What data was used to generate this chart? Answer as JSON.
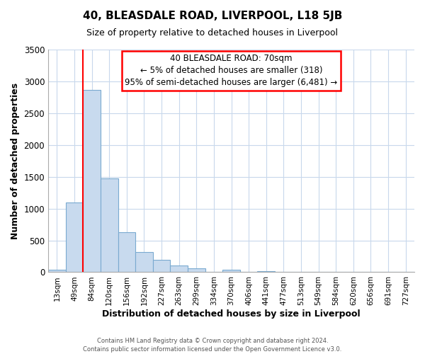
{
  "title": "40, BLEASDALE ROAD, LIVERPOOL, L18 5JB",
  "subtitle": "Size of property relative to detached houses in Liverpool",
  "xlabel": "Distribution of detached houses by size in Liverpool",
  "ylabel": "Number of detached properties",
  "bar_color": "#c8daee",
  "bar_edge_color": "#7aaad0",
  "categories": [
    "13sqm",
    "49sqm",
    "84sqm",
    "120sqm",
    "156sqm",
    "192sqm",
    "227sqm",
    "263sqm",
    "299sqm",
    "334sqm",
    "370sqm",
    "406sqm",
    "441sqm",
    "477sqm",
    "513sqm",
    "549sqm",
    "584sqm",
    "620sqm",
    "656sqm",
    "691sqm",
    "727sqm"
  ],
  "values": [
    40,
    1100,
    2870,
    1470,
    630,
    320,
    190,
    100,
    60,
    5,
    40,
    5,
    20,
    5,
    0,
    0,
    0,
    0,
    0,
    0,
    0
  ],
  "ylim": [
    0,
    3500
  ],
  "yticks": [
    0,
    500,
    1000,
    1500,
    2000,
    2500,
    3000,
    3500
  ],
  "red_line_x": 1.5,
  "annotation_title": "40 BLEASDALE ROAD: 70sqm",
  "annotation_line1": "← 5% of detached houses are smaller (318)",
  "annotation_line2": "95% of semi-detached houses are larger (6,481) →",
  "footer1": "Contains HM Land Registry data © Crown copyright and database right 2024.",
  "footer2": "Contains public sector information licensed under the Open Government Licence v3.0.",
  "background_color": "#ffffff",
  "grid_color": "#c8d8ec"
}
